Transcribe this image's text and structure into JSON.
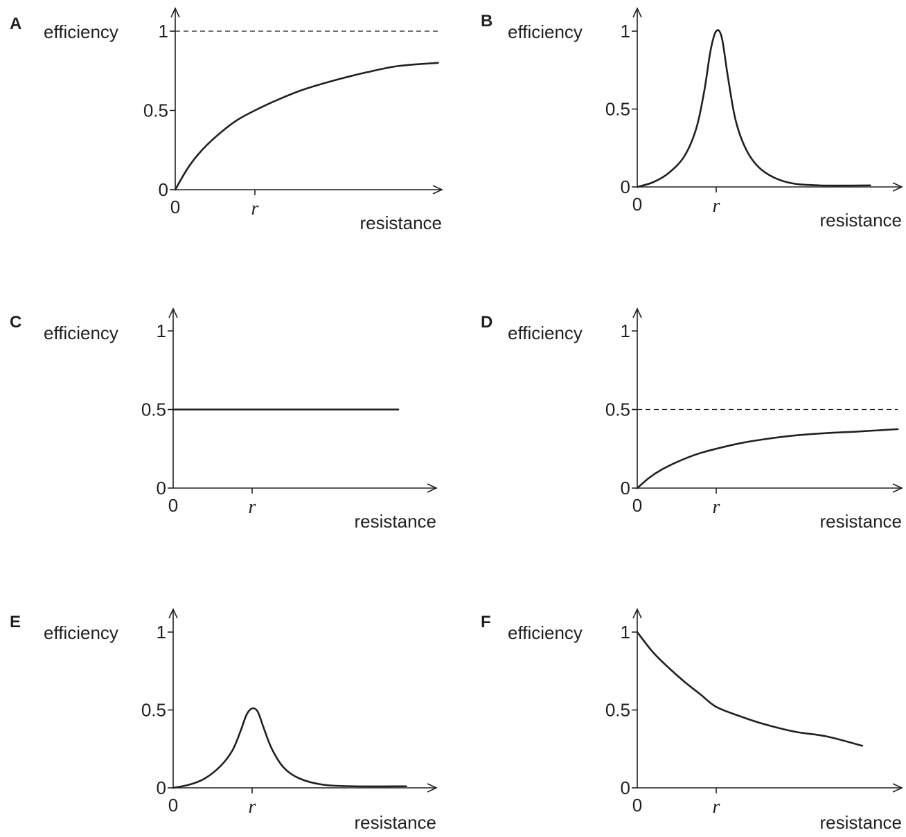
{
  "chart_data": [
    {
      "panel": "A",
      "type": "line",
      "ylabel": "efficiency",
      "xlabel": "resistance",
      "y_ticks": [
        "0",
        "0.5",
        "1"
      ],
      "x_ticks": [
        "0",
        "r"
      ],
      "ylim": [
        0,
        1
      ],
      "xlim": [
        0,
        3.3
      ],
      "grid": false,
      "reference_lines": [
        {
          "y": 1,
          "style": "dashed"
        }
      ],
      "series": [
        {
          "points": [
            [
              0,
              0
            ],
            [
              0.15,
              0.13
            ],
            [
              0.3,
              0.23
            ],
            [
              0.5,
              0.33
            ],
            [
              0.75,
              0.43
            ],
            [
              1,
              0.5
            ],
            [
              1.3,
              0.57
            ],
            [
              1.6,
              0.63
            ],
            [
              2,
              0.69
            ],
            [
              2.4,
              0.74
            ],
            [
              2.8,
              0.78
            ],
            [
              3.3,
              0.8
            ]
          ]
        }
      ]
    },
    {
      "panel": "B",
      "type": "line",
      "ylabel": "efficiency",
      "xlabel": "resistance",
      "y_ticks": [
        "0",
        "0.5",
        "1"
      ],
      "x_ticks": [
        "0",
        "r"
      ],
      "ylim": [
        0,
        1
      ],
      "xlim": [
        0,
        3.3
      ],
      "grid": false,
      "series": [
        {
          "points": [
            [
              0,
              0
            ],
            [
              0.2,
              0.03
            ],
            [
              0.4,
              0.09
            ],
            [
              0.6,
              0.2
            ],
            [
              0.75,
              0.38
            ],
            [
              0.85,
              0.62
            ],
            [
              0.93,
              0.88
            ],
            [
              1,
              1
            ],
            [
              1.07,
              0.96
            ],
            [
              1.15,
              0.7
            ],
            [
              1.25,
              0.42
            ],
            [
              1.4,
              0.22
            ],
            [
              1.6,
              0.1
            ],
            [
              1.9,
              0.03
            ],
            [
              2.3,
              0.01
            ],
            [
              2.95,
              0.01
            ]
          ]
        }
      ]
    },
    {
      "panel": "C",
      "type": "line",
      "ylabel": "efficiency",
      "xlabel": "resistance",
      "y_ticks": [
        "0",
        "0.5",
        "1"
      ],
      "x_ticks": [
        "0",
        "r"
      ],
      "ylim": [
        0,
        1
      ],
      "xlim": [
        0,
        3.3
      ],
      "grid": false,
      "series": [
        {
          "points": [
            [
              0,
              0.5
            ],
            [
              2.85,
              0.5
            ]
          ]
        }
      ]
    },
    {
      "panel": "D",
      "type": "line",
      "ylabel": "efficiency",
      "xlabel": "resistance",
      "y_ticks": [
        "0",
        "0.5",
        "1"
      ],
      "x_ticks": [
        "0",
        "r"
      ],
      "ylim": [
        0,
        1
      ],
      "xlim": [
        0,
        3.3
      ],
      "grid": false,
      "reference_lines": [
        {
          "y": 0.5,
          "style": "dashed"
        }
      ],
      "series": [
        {
          "points": [
            [
              0,
              0
            ],
            [
              0.15,
              0.065
            ],
            [
              0.3,
              0.115
            ],
            [
              0.5,
              0.165
            ],
            [
              0.75,
              0.215
            ],
            [
              1,
              0.25
            ],
            [
              1.3,
              0.285
            ],
            [
              1.6,
              0.31
            ],
            [
              2,
              0.335
            ],
            [
              2.4,
              0.35
            ],
            [
              2.8,
              0.36
            ],
            [
              3.3,
              0.375
            ]
          ]
        }
      ]
    },
    {
      "panel": "E",
      "type": "line",
      "ylabel": "efficiency",
      "xlabel": "resistance",
      "y_ticks": [
        "0",
        "0.5",
        "1"
      ],
      "x_ticks": [
        "0",
        "r"
      ],
      "ylim": [
        0,
        1
      ],
      "xlim": [
        0,
        3.3
      ],
      "grid": false,
      "series": [
        {
          "points": [
            [
              0,
              0
            ],
            [
              0.2,
              0.02
            ],
            [
              0.4,
              0.06
            ],
            [
              0.6,
              0.14
            ],
            [
              0.75,
              0.24
            ],
            [
              0.85,
              0.36
            ],
            [
              0.93,
              0.47
            ],
            [
              1,
              0.51
            ],
            [
              1.07,
              0.49
            ],
            [
              1.15,
              0.38
            ],
            [
              1.25,
              0.25
            ],
            [
              1.4,
              0.13
            ],
            [
              1.6,
              0.06
            ],
            [
              1.9,
              0.02
            ],
            [
              2.3,
              0.01
            ],
            [
              2.95,
              0.01
            ]
          ]
        }
      ]
    },
    {
      "panel": "F",
      "type": "line",
      "ylabel": "efficiency",
      "xlabel": "resistance",
      "y_ticks": [
        "0",
        "0.5",
        "1"
      ],
      "x_ticks": [
        "0",
        "r"
      ],
      "ylim": [
        0,
        1
      ],
      "xlim": [
        0,
        3.3
      ],
      "grid": false,
      "series": [
        {
          "points": [
            [
              0,
              1
            ],
            [
              0.2,
              0.87
            ],
            [
              0.4,
              0.77
            ],
            [
              0.6,
              0.68
            ],
            [
              0.8,
              0.6
            ],
            [
              1,
              0.52
            ],
            [
              1.3,
              0.46
            ],
            [
              1.6,
              0.41
            ],
            [
              2,
              0.36
            ],
            [
              2.4,
              0.33
            ],
            [
              2.85,
              0.27
            ]
          ]
        }
      ]
    }
  ]
}
